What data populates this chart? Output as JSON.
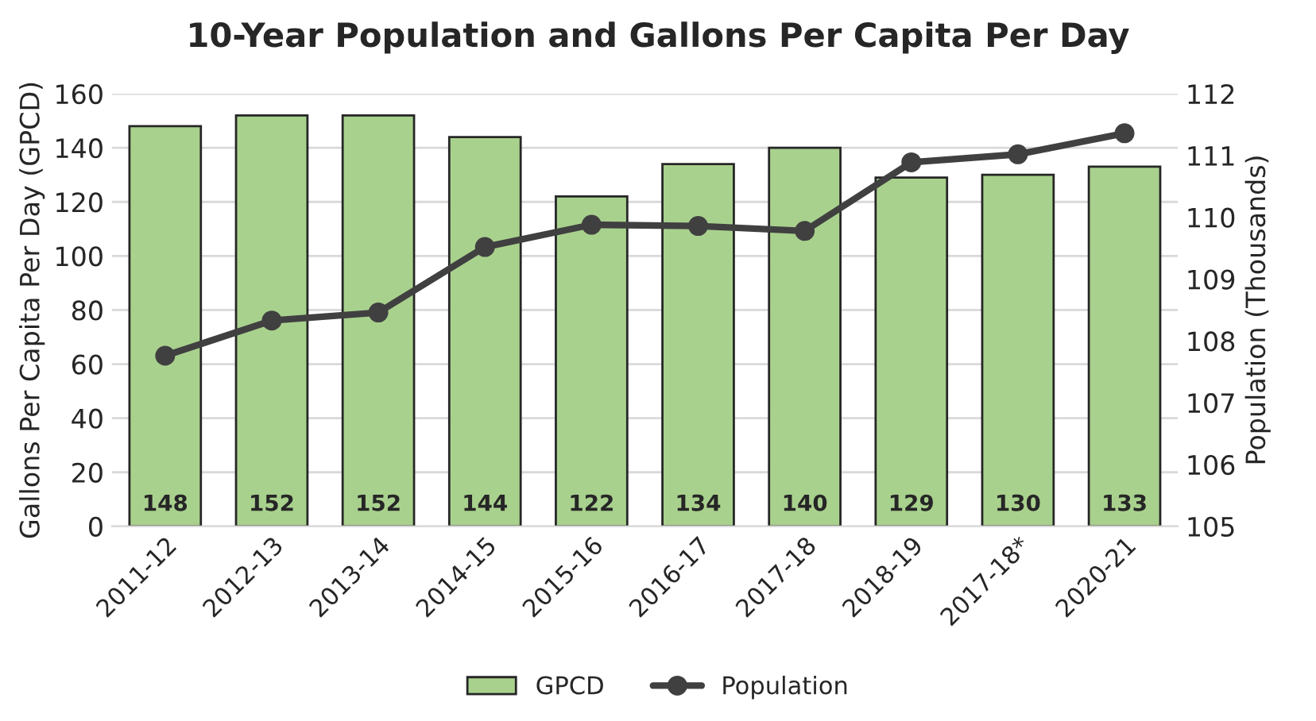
{
  "chart_data": {
    "type": "bar",
    "title": "10-Year Population and Gallons Per Capita Per Day",
    "ylabel": "Gallons Per Capita Per Day (GPCD)",
    "y2label": "Population (Thousands)",
    "categories": [
      "2011-12",
      "2012-13",
      "2013-14",
      "2014-15",
      "2015-16",
      "2016-17",
      "2017-18",
      "2018-19",
      "2017-18*",
      "2020-21"
    ],
    "series": [
      {
        "name": "GPCD",
        "color": "#a9d18e",
        "values": [
          148,
          152,
          152,
          144,
          122,
          134,
          140,
          129,
          130,
          133
        ],
        "data_labels": true
      },
      {
        "name": "Population",
        "type": "line",
        "axis": "y2",
        "color": "#404040",
        "marker": "circle",
        "values": [
          107.76,
          108.33,
          108.46,
          109.52,
          109.88,
          109.86,
          109.78,
          110.89,
          111.02,
          111.36
        ]
      }
    ],
    "ylim": [
      0,
      160
    ],
    "yticks": [
      0,
      20,
      40,
      60,
      80,
      100,
      120,
      140,
      160
    ],
    "y2lim": [
      105,
      112
    ],
    "y2ticks": [
      105,
      106,
      107,
      108,
      109,
      110,
      111,
      112
    ],
    "grid": "y",
    "legend": "bottom"
  }
}
